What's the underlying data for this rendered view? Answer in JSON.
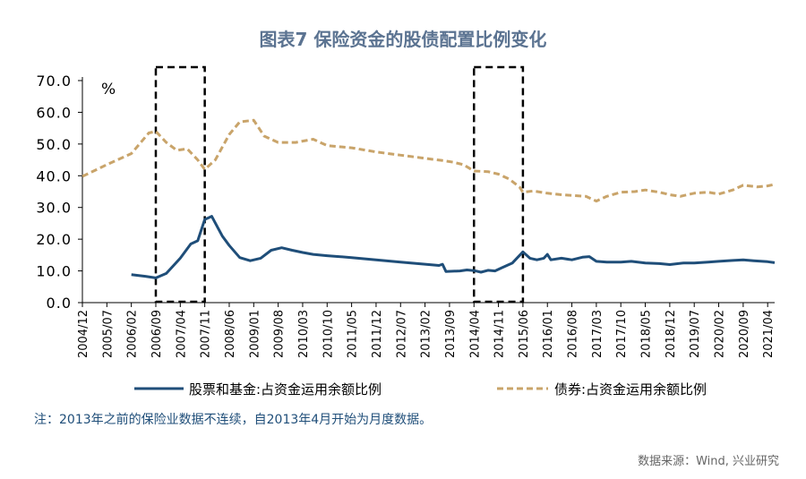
{
  "title": "图表7 保险资金的股债配置比例变化",
  "note": "注：2013年之前的保险业数据不连续，自2013年4月开始为月度数据。",
  "source": "数据来源：Wind, 兴业研究",
  "colors": {
    "equity": "#1f4e79",
    "bond": "#c9a46a",
    "title": "#5b7391",
    "box": "#000000"
  },
  "chart_data": {
    "type": "line",
    "unit": "%",
    "ylim": [
      0,
      70
    ],
    "y_ticks": [
      "0.0",
      "10.0",
      "20.0",
      "30.0",
      "40.0",
      "50.0",
      "60.0",
      "70.0"
    ],
    "x_tick_labels": [
      "2004/12",
      "2005/07",
      "2006/02",
      "2006/09",
      "2007/04",
      "2007/11",
      "2008/06",
      "2009/01",
      "2009/08",
      "2010/03",
      "2010/10",
      "2011/05",
      "2011/12",
      "2012/07",
      "2013/02",
      "2013/09",
      "2014/04",
      "2014/11",
      "2015/06",
      "2016/01",
      "2016/08",
      "2017/03",
      "2017/10",
      "2018/05",
      "2018/12",
      "2019/07",
      "2020/02",
      "2020/09",
      "2021/04"
    ],
    "grid": false,
    "legend_position": "bottom",
    "highlight_ranges": [
      {
        "from": "2006/09",
        "to": "2007/11"
      },
      {
        "from": "2014/04",
        "to": "2015/06"
      }
    ],
    "series": [
      {
        "name": "股票和基金:占资金运用余额比例",
        "style": "solid",
        "points": [
          [
            "2006/02",
            8.8
          ],
          [
            "2006/06",
            8.3
          ],
          [
            "2006/09",
            7.8
          ],
          [
            "2006/12",
            9.2
          ],
          [
            "2007/04",
            14.0
          ],
          [
            "2007/07",
            18.5
          ],
          [
            "2007/09",
            19.5
          ],
          [
            "2007/11",
            26.2
          ],
          [
            "2008/01",
            27.2
          ],
          [
            "2008/04",
            21.0
          ],
          [
            "2008/06",
            18.0
          ],
          [
            "2008/09",
            14.2
          ],
          [
            "2008/12",
            13.2
          ],
          [
            "2009/03",
            14.0
          ],
          [
            "2009/06",
            16.5
          ],
          [
            "2009/09",
            17.3
          ],
          [
            "2009/12",
            16.5
          ],
          [
            "2010/03",
            15.8
          ],
          [
            "2010/06",
            15.2
          ],
          [
            "2010/10",
            14.8
          ],
          [
            "2011/05",
            14.2
          ],
          [
            "2011/12",
            13.5
          ],
          [
            "2012/07",
            12.8
          ],
          [
            "2013/02",
            12.1
          ],
          [
            "2013/06",
            11.7
          ],
          [
            "2013/07",
            12.1
          ],
          [
            "2013/08",
            9.8
          ],
          [
            "2013/12",
            10.0
          ],
          [
            "2014/02",
            10.3
          ],
          [
            "2014/04",
            10.1
          ],
          [
            "2014/06",
            9.6
          ],
          [
            "2014/08",
            10.2
          ],
          [
            "2014/10",
            10.0
          ],
          [
            "2014/12",
            11.0
          ],
          [
            "2015/03",
            12.5
          ],
          [
            "2015/06",
            16.0
          ],
          [
            "2015/08",
            14.0
          ],
          [
            "2015/10",
            13.5
          ],
          [
            "2015/12",
            14.0
          ],
          [
            "2016/01",
            15.2
          ],
          [
            "2016/02",
            13.5
          ],
          [
            "2016/05",
            14.0
          ],
          [
            "2016/08",
            13.5
          ],
          [
            "2016/11",
            14.3
          ],
          [
            "2017/01",
            14.5
          ],
          [
            "2017/03",
            13.0
          ],
          [
            "2017/06",
            12.8
          ],
          [
            "2017/10",
            12.8
          ],
          [
            "2018/01",
            13.0
          ],
          [
            "2018/05",
            12.5
          ],
          [
            "2018/09",
            12.3
          ],
          [
            "2018/12",
            12.0
          ],
          [
            "2019/04",
            12.5
          ],
          [
            "2019/07",
            12.5
          ],
          [
            "2019/11",
            12.8
          ],
          [
            "2020/02",
            13.0
          ],
          [
            "2020/06",
            13.3
          ],
          [
            "2020/09",
            13.5
          ],
          [
            "2020/12",
            13.2
          ],
          [
            "2021/04",
            12.9
          ],
          [
            "2021/06",
            12.6
          ]
        ]
      },
      {
        "name": "债券:占资金运用余额比例",
        "style": "dashed",
        "points": [
          [
            "2004/12",
            39.8
          ],
          [
            "2005/07",
            43.5
          ],
          [
            "2006/02",
            47.0
          ],
          [
            "2006/07",
            53.5
          ],
          [
            "2006/09",
            54.0
          ],
          [
            "2006/12",
            50.5
          ],
          [
            "2007/03",
            48.0
          ],
          [
            "2007/06",
            48.5
          ],
          [
            "2007/09",
            45.0
          ],
          [
            "2007/11",
            42.0
          ],
          [
            "2008/02",
            45.0
          ],
          [
            "2008/06",
            53.0
          ],
          [
            "2008/09",
            57.0
          ],
          [
            "2009/01",
            57.5
          ],
          [
            "2009/04",
            52.5
          ],
          [
            "2009/08",
            50.5
          ],
          [
            "2010/01",
            50.5
          ],
          [
            "2010/06",
            51.5
          ],
          [
            "2010/10",
            49.5
          ],
          [
            "2011/05",
            48.8
          ],
          [
            "2011/12",
            47.5
          ],
          [
            "2012/07",
            46.5
          ],
          [
            "2013/02",
            45.5
          ],
          [
            "2013/04",
            45.2
          ],
          [
            "2013/07",
            44.8
          ],
          [
            "2013/10",
            44.3
          ],
          [
            "2014/01",
            43.5
          ],
          [
            "2014/04",
            41.5
          ],
          [
            "2014/08",
            41.3
          ],
          [
            "2014/11",
            40.5
          ],
          [
            "2015/02",
            39.0
          ],
          [
            "2015/05",
            36.5
          ],
          [
            "2015/06",
            34.8
          ],
          [
            "2015/09",
            35.2
          ],
          [
            "2016/01",
            34.5
          ],
          [
            "2016/05",
            34.0
          ],
          [
            "2016/08",
            33.8
          ],
          [
            "2016/12",
            33.5
          ],
          [
            "2017/03",
            32.0
          ],
          [
            "2017/06",
            33.5
          ],
          [
            "2017/10",
            34.8
          ],
          [
            "2018/02",
            35.0
          ],
          [
            "2018/05",
            35.5
          ],
          [
            "2018/09",
            34.8
          ],
          [
            "2018/12",
            34.0
          ],
          [
            "2019/03",
            33.5
          ],
          [
            "2019/07",
            34.5
          ],
          [
            "2019/11",
            34.8
          ],
          [
            "2020/02",
            34.2
          ],
          [
            "2020/06",
            35.5
          ],
          [
            "2020/09",
            37.0
          ],
          [
            "2021/01",
            36.5
          ],
          [
            "2021/04",
            36.8
          ],
          [
            "2021/06",
            37.3
          ]
        ]
      }
    ]
  }
}
